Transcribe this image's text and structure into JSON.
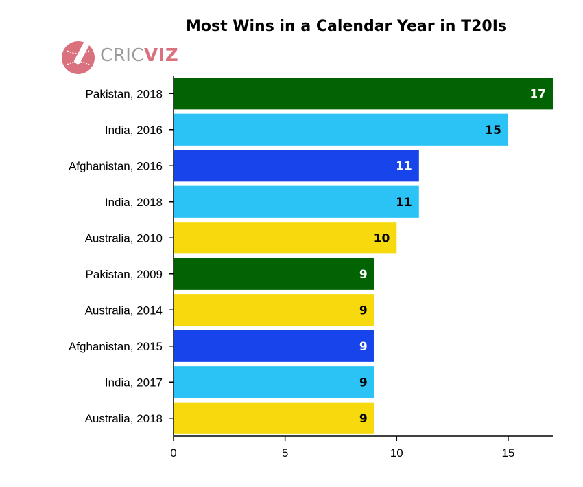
{
  "chart_data": {
    "type": "bar",
    "orientation": "horizontal",
    "title": "Most Wins in a Calendar Year in T20Is",
    "xlabel": "",
    "ylabel": "",
    "xlim": [
      0,
      17
    ],
    "xticks": [
      0,
      5,
      10,
      15
    ],
    "grid": false,
    "categories": [
      "Pakistan, 2018",
      "India, 2016",
      "Afghanistan, 2016",
      "India, 2018",
      "Australia, 2010",
      "Pakistan, 2009",
      "Australia, 2014",
      "Afghanistan, 2015",
      "India, 2017",
      "Australia, 2018"
    ],
    "values": [
      17,
      15,
      11,
      11,
      10,
      9,
      9,
      9,
      9,
      9
    ],
    "bar_colors": [
      "#026302",
      "#2bc3f5",
      "#1744eb",
      "#2bc3f5",
      "#f6da0e",
      "#026302",
      "#f6da0e",
      "#1744eb",
      "#2bc3f5",
      "#f6da0e"
    ],
    "label_colors": [
      "#ffffff",
      "#000000",
      "#ffffff",
      "#000000",
      "#000000",
      "#ffffff",
      "#000000",
      "#ffffff",
      "#000000",
      "#000000"
    ]
  },
  "logo": {
    "text_main": "CRIC",
    "text_accent": "VIZ",
    "icon": "cricket-ball-bat-icon",
    "color": "#d9717f"
  }
}
